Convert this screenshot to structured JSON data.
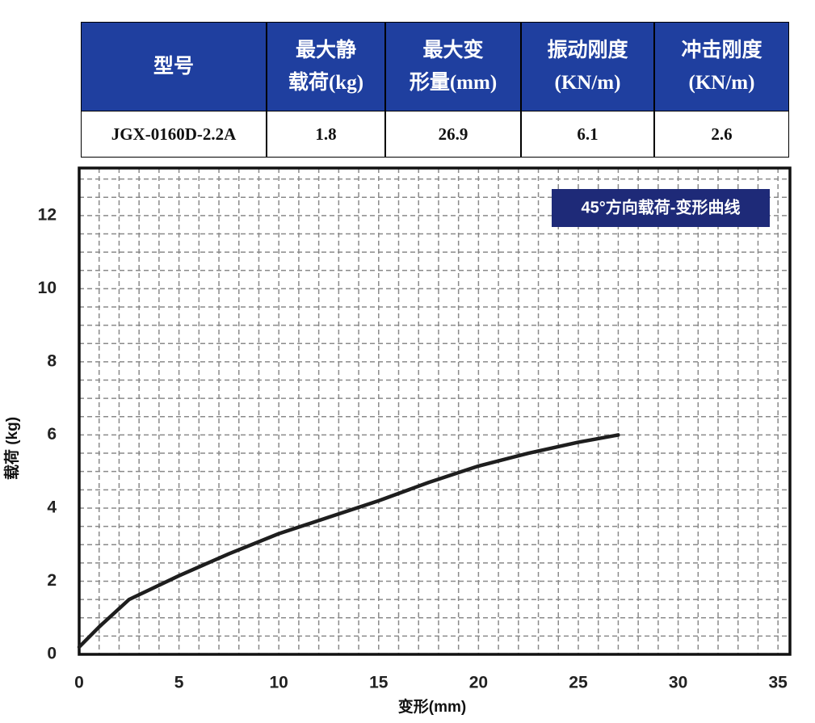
{
  "table": {
    "header": [
      [
        "型号"
      ],
      [
        "最大静",
        "载荷(kg)"
      ],
      [
        "最大变",
        "形量(mm)"
      ],
      [
        "振动刚度",
        "(KN/m)"
      ],
      [
        "冲击刚度",
        "(KN/m)"
      ]
    ],
    "rows": [
      [
        "JGX-0160D-2.2A",
        "1.8",
        "26.9",
        "6.1",
        "2.6"
      ]
    ]
  },
  "chart_data": {
    "type": "line",
    "title": "45°方向载荷-变形曲线",
    "x_label": "变形(mm)",
    "y_label": "载荷 (kg)",
    "x": [
      0,
      1,
      2.5,
      5,
      7.5,
      10,
      12.5,
      15,
      17.5,
      20,
      22.5,
      25,
      27
    ],
    "series": [
      {
        "name": "45°方向载荷-变形曲线",
        "color": "#1e1e1e",
        "values": [
          0.2,
          0.75,
          1.5,
          2.15,
          2.75,
          3.3,
          3.75,
          4.2,
          4.7,
          5.15,
          5.5,
          5.8,
          6.0
        ]
      }
    ],
    "xlim": [
      0,
      35.6
    ],
    "ylim": [
      0,
      13.3
    ],
    "xticks": [
      0,
      5,
      10,
      15,
      20,
      25,
      30,
      35
    ],
    "yticks": [
      0,
      2,
      4,
      6,
      8,
      10,
      12
    ],
    "grid": true,
    "grid_step_x": 1,
    "grid_step_y": 0.5
  }
}
